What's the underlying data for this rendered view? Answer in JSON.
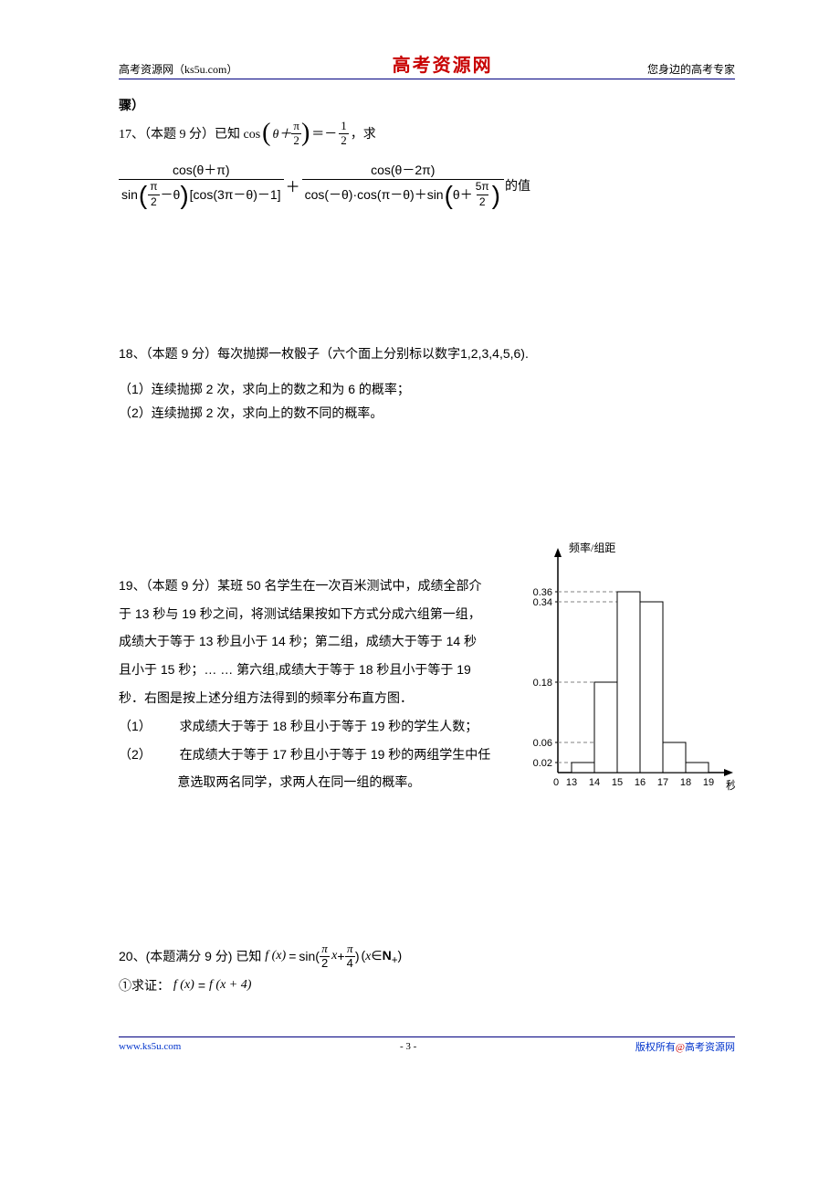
{
  "header": {
    "left": "高考资源网（ks5u.com）",
    "center": "高考资源网",
    "right": "您身边的高考专家"
  },
  "p17": {
    "continued": "骤）",
    "prefix": "17、（本题 9 分）已知 cos",
    "theta_plus": "θ＋",
    "pi": "π",
    "two": "2",
    "eq": "＝－",
    "one": "1",
    "comma_qiu": "，求",
    "big_num1": "cos(θ＋π)",
    "big_den1_a": "sin",
    "big_den1_b": "－θ",
    "big_den1_c": "[cos(3π－θ)－1]",
    "big_num2": "cos(θ－2π)",
    "big_den2_a": "cos(－θ)·cos(π－θ)＋sin",
    "big_den2_b": "θ＋",
    "big_den2_c": "5π",
    "dezhi": "的值"
  },
  "p18": {
    "stem": "18、（本题 9 分）每次抛掷一枚骰子（六个面上分别标以数字1,2,3,4,5,6).",
    "s1": "（1）连续抛掷 2 次，求向上的数之和为 6 的概率；",
    "s2": "（2）连续抛掷 2 次，求向上的数不同的概率。"
  },
  "p19": {
    "t1": "19、（本题 9 分）某班 50 名学生在一次百米测试中，成绩全部介",
    "t2": "于 13 秒与 19 秒之间，将测试结果按如下方式分成六组第一组，",
    "t3": "成绩大于等于 13 秒且小于 14 秒；第二组，成绩大于等于 14 秒",
    "t4": "且小于 15 秒；… … 第六组,成绩大于等于 18 秒且小于等于 19",
    "t5": "秒．右图是按上述分组方法得到的频率分布直方图．",
    "s1a": "（1）",
    "s1b": "求成绩大于等于 18 秒且小于等于 19 秒的学生人数；",
    "s2a": "（2）",
    "s2b": "在成绩大于等于 17 秒且小于等于 19 秒的两组学生中任",
    "s2c": "意选取两名同学，求两人在同一组的概率。"
  },
  "chart": {
    "ylabel": "频率/组距",
    "xlabel": "秒",
    "yticks": [
      "0.36",
      "0.34",
      "0.18",
      "0.06",
      "0.02"
    ],
    "ytick_vals": [
      0.36,
      0.34,
      0.18,
      0.06,
      0.02
    ],
    "xticks": [
      "0",
      "13",
      "14",
      "15",
      "16",
      "17",
      "18",
      "19"
    ],
    "bars": [
      0.02,
      0.18,
      0.36,
      0.34,
      0.06,
      0.02
    ],
    "axis_color": "#000000",
    "dash_color": "#808080",
    "bar_fill": "#ffffff",
    "bar_stroke": "#000000",
    "label_fontsize": 12,
    "tick_fontsize": 11
  },
  "p20": {
    "line1a": "20、(本题满分 9 分) 已知",
    "fx": "f (x)",
    "eq": "=",
    "sin": "sin(",
    "pi1": "π",
    "two": "2",
    "x": "x",
    "plus": " + ",
    "pi2": "π",
    "four": "4",
    "close": ")",
    "cond": "(x∈",
    "Nplus": "N₊)",
    "line2a": "①求证：",
    "rhs": "f (x + 4)"
  },
  "footer": {
    "left": "www.ks5u.com",
    "center": "- 3 -",
    "right_a": "版权所有",
    "right_at": "@",
    "right_b": "高考资源网"
  }
}
